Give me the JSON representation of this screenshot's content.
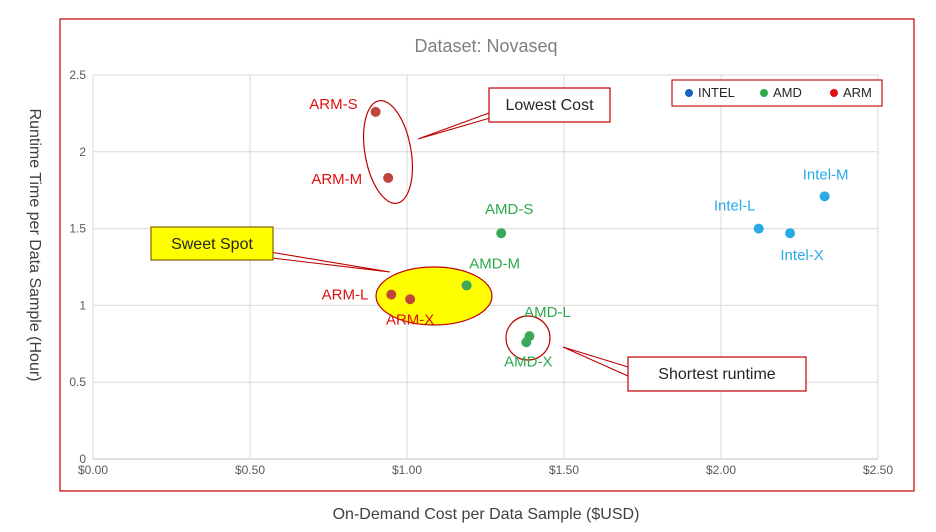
{
  "chart_data": {
    "type": "scatter",
    "title": "Dataset: Novaseq",
    "xlabel": "On-Demand Cost per Data Sample ($USD)",
    "ylabel": "Runtime   Time  per Data Sample (Hour)",
    "xlim": [
      0,
      2.5
    ],
    "ylim": [
      0,
      2.5
    ],
    "x_ticks": [
      0,
      0.5,
      1.0,
      1.5,
      2.0,
      2.5
    ],
    "x_tick_labels": [
      "$0.00",
      "$0.50",
      "$1.00",
      "$1.50",
      "$2.00",
      "$2.50"
    ],
    "y_ticks": [
      0,
      0.5,
      1,
      1.5,
      2,
      2.5
    ],
    "y_tick_labels": [
      "0",
      "0.5",
      "1",
      "1.5",
      "2",
      "2.5"
    ],
    "grid": true,
    "legend_position": "top-right",
    "series": [
      {
        "name": "INTEL",
        "legend_color": "#1565c0",
        "point_color": "#29a9e6",
        "label_color": "#29a9e6",
        "points": [
          {
            "label": "Intel-M",
            "x": 2.33,
            "y": 1.71
          },
          {
            "label": "Intel-L",
            "x": 2.12,
            "y": 1.5
          },
          {
            "label": "Intel-X",
            "x": 2.22,
            "y": 1.47
          }
        ]
      },
      {
        "name": "AMD",
        "legend_color": "#2ea84a",
        "point_color": "#3ca85a",
        "label_color": "#2ea84a",
        "points": [
          {
            "label": "AMD-S",
            "x": 1.3,
            "y": 1.47
          },
          {
            "label": "AMD-M",
            "x": 1.19,
            "y": 1.13
          },
          {
            "label": "AMD-L",
            "x": 1.39,
            "y": 0.8
          },
          {
            "label": "AMD-X",
            "x": 1.38,
            "y": 0.76
          }
        ]
      },
      {
        "name": "ARM",
        "legend_color": "#e01010",
        "point_color": "#c0453a",
        "label_color": "#e01010",
        "points": [
          {
            "label": "ARM-S",
            "x": 0.9,
            "y": 2.26
          },
          {
            "label": "ARM-M",
            "x": 0.94,
            "y": 1.83
          },
          {
            "label": "ARM-L",
            "x": 0.95,
            "y": 1.07
          },
          {
            "label": "ARM-X",
            "x": 1.01,
            "y": 1.04
          }
        ]
      }
    ],
    "annotations": [
      {
        "text": "Lowest Cost",
        "style": "box"
      },
      {
        "text": "Sweet Spot",
        "style": "highlight"
      },
      {
        "text": "Shortest runtime",
        "style": "box"
      }
    ]
  },
  "colors": {
    "frame": "#c00000",
    "grid": "#d9d9d9",
    "highlight_fill": "#ffff00",
    "callout_border": "#c00000"
  }
}
